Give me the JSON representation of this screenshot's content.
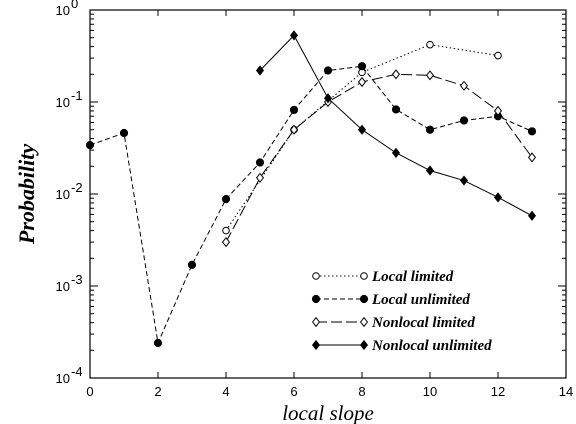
{
  "chart_data": {
    "type": "line",
    "xlabel": "local slope",
    "ylabel": "Probability",
    "xlim": [
      0,
      14
    ],
    "ylim": [
      0.0001,
      1
    ],
    "yscale": "log",
    "grid": false,
    "legend_position": "bottom-right",
    "x_ticks": [
      {
        "value": 0,
        "label": "0"
      },
      {
        "value": 2,
        "label": "2"
      },
      {
        "value": 4,
        "label": "4"
      },
      {
        "value": 6,
        "label": "6"
      },
      {
        "value": 8,
        "label": "8"
      },
      {
        "value": 10,
        "label": "10"
      },
      {
        "value": 12,
        "label": "12"
      },
      {
        "value": 14,
        "label": "14"
      }
    ],
    "y_ticks": [
      {
        "value": 0.0001,
        "base": "10",
        "exp": "-4"
      },
      {
        "value": 0.001,
        "base": "10",
        "exp": "-3"
      },
      {
        "value": 0.01,
        "base": "10",
        "exp": "-2"
      },
      {
        "value": 0.1,
        "base": "10",
        "exp": "-1"
      },
      {
        "value": 1,
        "base": "10",
        "exp": "0"
      }
    ],
    "series": [
      {
        "name": "Local limited",
        "line": "dotted",
        "marker": "open-circle",
        "x": [
          4,
          6,
          8,
          10,
          12
        ],
        "y": [
          0.004,
          0.05,
          0.21,
          0.42,
          0.32
        ]
      },
      {
        "name": "Local unlimited",
        "line": "dashed",
        "marker": "filled-circle",
        "x": [
          0,
          1,
          2,
          3,
          4,
          5,
          6,
          7,
          8,
          9,
          10,
          11,
          12,
          13
        ],
        "y": [
          0.034,
          0.046,
          0.00024,
          0.0017,
          0.0088,
          0.022,
          0.082,
          0.22,
          0.245,
          0.083,
          0.05,
          0.063,
          0.07,
          0.048
        ]
      },
      {
        "name": "Nonlocal limited",
        "line": "long-dashed",
        "marker": "open-diamond",
        "x": [
          4,
          5,
          6,
          7,
          8,
          9,
          10,
          11,
          12,
          13
        ],
        "y": [
          0.003,
          0.015,
          0.05,
          0.1,
          0.165,
          0.2,
          0.195,
          0.15,
          0.08,
          0.025
        ]
      },
      {
        "name": "Nonlocal unlimited",
        "line": "solid",
        "marker": "filled-diamond",
        "x": [
          5,
          6,
          7,
          8,
          9,
          10,
          11,
          12,
          13
        ],
        "y": [
          0.22,
          0.53,
          0.11,
          0.05,
          0.028,
          0.018,
          0.014,
          0.0092,
          0.0058
        ]
      }
    ]
  }
}
